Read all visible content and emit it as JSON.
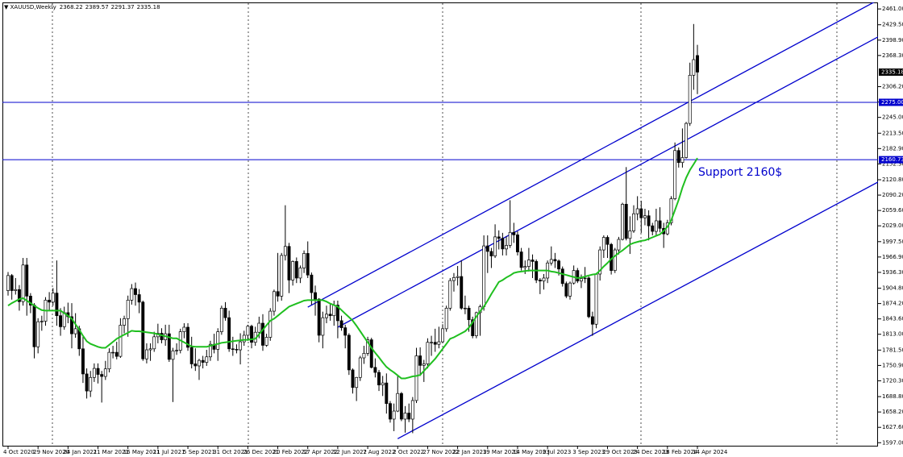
{
  "chart_data": {
    "type": "candlestick",
    "title": "XAUUSD,Weekly",
    "categories": [
      "4 Oct 2020",
      null,
      null,
      null,
      null,
      null,
      null,
      null,
      "29 Nov 2020",
      null,
      null,
      null,
      null,
      null,
      null,
      null,
      "24 Jan 2021",
      null,
      null,
      null,
      null,
      null,
      null,
      null,
      "21 Mar 2021",
      null,
      null,
      null,
      null,
      null,
      null,
      null,
      "16 May 2021",
      null,
      null,
      null,
      null,
      null,
      null,
      null,
      "11 Jul 2021",
      null,
      null,
      null,
      null,
      null,
      null,
      null,
      "5 Sep 2021",
      null,
      null,
      null,
      null,
      null,
      null,
      null,
      "31 Oct 2021",
      null,
      null,
      null,
      null,
      null,
      null,
      null,
      "26 Dec 2021",
      null,
      null,
      null,
      null,
      null,
      null,
      null,
      "20 Feb 2022",
      null,
      null,
      null,
      null,
      null,
      null,
      null,
      "17 Apr 2022",
      null,
      null,
      null,
      null,
      null,
      null,
      null,
      "12 Jun 2022",
      null,
      null,
      null,
      null,
      null,
      null,
      null,
      "7 Aug 2022",
      null,
      null,
      null,
      null,
      null,
      null,
      null,
      "2 Oct 2022",
      null,
      null,
      null,
      null,
      null,
      null,
      null,
      "27 Nov 2022",
      null,
      null,
      null,
      null,
      null,
      null,
      null,
      "22 Jan 2023",
      null,
      null,
      null,
      null,
      null,
      null,
      null,
      "19 Mar 2023",
      null,
      null,
      null,
      null,
      null,
      null,
      null,
      "14 May 2023",
      null,
      null,
      null,
      null,
      null,
      null,
      null,
      "9 Jul 2023",
      null,
      null,
      null,
      null,
      null,
      null,
      null,
      "3 Sep 2023",
      null,
      null,
      null,
      null,
      null,
      null,
      null,
      "29 Oct 2023",
      null,
      null,
      null,
      null,
      null,
      null,
      null,
      "24 Dec 2023",
      null,
      null,
      null,
      null,
      null,
      null,
      null,
      "18 Feb 2024",
      null,
      null,
      null,
      null,
      null,
      null,
      null,
      "14 Apr 2024"
    ],
    "open": [
      1900,
      1930,
      1900,
      1902,
      1878,
      1951,
      1889,
      1871,
      1788,
      1838,
      1839,
      1881,
      1877,
      1895,
      1850,
      1828,
      1856,
      1848,
      1814,
      1824,
      1784,
      1734,
      1700,
      1727,
      1745,
      1733,
      1729,
      1744,
      1777,
      1777,
      1769,
      1831,
      1844,
      1881,
      1904,
      1892,
      1877,
      1764,
      1782,
      1784,
      1808,
      1815,
      1802,
      1814,
      1763,
      1780,
      1781,
      1818,
      1827,
      1787,
      1754,
      1750,
      1761,
      1757,
      1768,
      1793,
      1783,
      1818,
      1865,
      1846,
      1784,
      1783,
      1782,
      1798,
      1811,
      1829,
      1797,
      1817,
      1835,
      1791,
      1807,
      1859,
      1898,
      1889,
      1970,
      1988,
      1921,
      1958,
      1925,
      1945,
      1974,
      1931,
      1896,
      1883,
      1811,
      1846,
      1853,
      1850,
      1871,
      1840,
      1826,
      1811,
      1742,
      1707,
      1727,
      1766,
      1775,
      1802,
      1747,
      1737,
      1712,
      1716,
      1675,
      1644,
      1660,
      1695,
      1644,
      1656,
      1644,
      1681,
      1770,
      1751,
      1754,
      1797,
      1797,
      1793,
      1798,
      1824,
      1865,
      1920,
      1926,
      1928,
      1865,
      1865,
      1842,
      1810,
      1856,
      1868,
      1989,
      1978,
      1969,
      2007,
      2004,
      1983,
      1990,
      2016,
      2011,
      1977,
      1946,
      1948,
      1961,
      1958,
      1921,
      1919,
      1925,
      1955,
      1962,
      1959,
      1943,
      1914,
      1889,
      1915,
      1940,
      1919,
      1924,
      1925,
      1848,
      1833,
      1933,
      1981,
      2006,
      1992,
      1940,
      1981,
      2002,
      2072,
      2004,
      2019,
      2053,
      2063,
      2045,
      2049,
      2029,
      2018,
      2039,
      2024,
      2013,
      2035,
      2083,
      2179,
      2155,
      2165,
      2233,
      2329,
      2368.22
    ],
    "high": [
      1937,
      1933,
      1925,
      1911,
      1965,
      1965,
      1895,
      1875,
      1845,
      1850,
      1887,
      1897,
      1905,
      1960,
      1865,
      1868,
      1876,
      1875,
      1855,
      1830,
      1808,
      1745,
      1740,
      1755,
      1755,
      1740,
      1760,
      1785,
      1790,
      1798,
      1845,
      1850,
      1890,
      1913,
      1916,
      1903,
      1880,
      1795,
      1795,
      1818,
      1834,
      1825,
      1832,
      1832,
      1786,
      1795,
      1824,
      1835,
      1835,
      1808,
      1785,
      1764,
      1770,
      1782,
      1800,
      1814,
      1825,
      1870,
      1877,
      1860,
      1808,
      1793,
      1815,
      1820,
      1832,
      1832,
      1828,
      1848,
      1853,
      1814,
      1865,
      1902,
      1975,
      1975,
      2070,
      1995,
      1960,
      1966,
      1950,
      1980,
      1998,
      1936,
      1910,
      1885,
      1858,
      1870,
      1875,
      1880,
      1880,
      1850,
      1832,
      1815,
      1745,
      1728,
      1770,
      1790,
      1808,
      1806,
      1765,
      1742,
      1730,
      1735,
      1680,
      1675,
      1730,
      1698,
      1670,
      1675,
      1688,
      1786,
      1787,
      1762,
      1805,
      1810,
      1824,
      1828,
      1833,
      1870,
      1925,
      1935,
      1949,
      1960,
      1890,
      1870,
      1848,
      1858,
      1872,
      2010,
      2010,
      1985,
      2032,
      2020,
      2015,
      2008,
      2080,
      2035,
      2018,
      1985,
      1960,
      1985,
      1972,
      1962,
      1925,
      1933,
      1960,
      1988,
      1975,
      1962,
      1948,
      1918,
      1918,
      1950,
      1945,
      1932,
      1947,
      1928,
      1858,
      1935,
      1988,
      2010,
      2010,
      1995,
      1985,
      2007,
      2075,
      2146,
      2048,
      2070,
      2088,
      2079,
      2063,
      2060,
      2035,
      2063,
      2066,
      2035,
      2041,
      2088,
      2195,
      2185,
      2223,
      2236,
      2354,
      2431,
      2389.57
    ],
    "low": [
      1890,
      1882,
      1892,
      1860,
      1870,
      1850,
      1855,
      1765,
      1775,
      1820,
      1830,
      1860,
      1870,
      1830,
      1810,
      1822,
      1835,
      1785,
      1806,
      1770,
      1716,
      1685,
      1688,
      1718,
      1715,
      1677,
      1722,
      1737,
      1765,
      1763,
      1766,
      1815,
      1808,
      1872,
      1870,
      1855,
      1760,
      1755,
      1760,
      1778,
      1795,
      1795,
      1790,
      1758,
      1678,
      1772,
      1775,
      1805,
      1780,
      1745,
      1740,
      1722,
      1745,
      1750,
      1760,
      1775,
      1760,
      1812,
      1840,
      1778,
      1770,
      1775,
      1753,
      1790,
      1800,
      1785,
      1790,
      1805,
      1780,
      1788,
      1800,
      1850,
      1878,
      1880,
      1960,
      1895,
      1910,
      1915,
      1915,
      1935,
      1925,
      1872,
      1850,
      1797,
      1785,
      1835,
      1840,
      1830,
      1805,
      1820,
      1785,
      1732,
      1695,
      1680,
      1720,
      1754,
      1770,
      1745,
      1727,
      1700,
      1690,
      1655,
      1637,
      1620,
      1658,
      1640,
      1617,
      1638,
      1616,
      1676,
      1730,
      1718,
      1745,
      1770,
      1778,
      1785,
      1795,
      1818,
      1860,
      1898,
      1910,
      1862,
      1853,
      1818,
      1805,
      1805,
      1810,
      1860,
      1935,
      1945,
      1965,
      1982,
      1970,
      1970,
      1985,
      1995,
      1970,
      1940,
      1933,
      1938,
      1925,
      1915,
      1893,
      1902,
      1915,
      1950,
      1945,
      1930,
      1908,
      1885,
      1882,
      1912,
      1915,
      1905,
      1915,
      1845,
      1810,
      1825,
      1920,
      1965,
      1965,
      1932,
      1935,
      1972,
      2000,
      2000,
      1973,
      2015,
      2040,
      2015,
      2030,
      2000,
      2010,
      2010,
      2016,
      1985,
      2010,
      2030,
      2080,
      2145,
      2145,
      2163,
      2228,
      2300,
      2291.37
    ],
    "close": [
      1930,
      1900,
      1902,
      1878,
      1951,
      1889,
      1871,
      1788,
      1838,
      1839,
      1881,
      1877,
      1895,
      1850,
      1828,
      1856,
      1848,
      1814,
      1824,
      1784,
      1734,
      1700,
      1727,
      1745,
      1733,
      1729,
      1744,
      1777,
      1777,
      1769,
      1831,
      1844,
      1881,
      1904,
      1892,
      1877,
      1764,
      1782,
      1784,
      1808,
      1815,
      1802,
      1814,
      1763,
      1780,
      1781,
      1818,
      1827,
      1787,
      1754,
      1750,
      1761,
      1757,
      1768,
      1793,
      1783,
      1818,
      1865,
      1846,
      1784,
      1783,
      1782,
      1798,
      1811,
      1829,
      1797,
      1817,
      1835,
      1791,
      1807,
      1859,
      1898,
      1889,
      1970,
      1988,
      1921,
      1958,
      1925,
      1945,
      1974,
      1931,
      1896,
      1883,
      1811,
      1846,
      1853,
      1850,
      1871,
      1840,
      1826,
      1811,
      1742,
      1707,
      1727,
      1766,
      1775,
      1802,
      1747,
      1737,
      1712,
      1716,
      1675,
      1644,
      1660,
      1695,
      1644,
      1656,
      1644,
      1681,
      1770,
      1751,
      1754,
      1797,
      1797,
      1793,
      1798,
      1824,
      1865,
      1920,
      1926,
      1928,
      1865,
      1865,
      1842,
      1810,
      1856,
      1868,
      1989,
      1978,
      1969,
      2007,
      2004,
      1983,
      1990,
      2016,
      2011,
      1977,
      1946,
      1948,
      1961,
      1958,
      1921,
      1919,
      1925,
      1955,
      1962,
      1959,
      1943,
      1914,
      1889,
      1915,
      1940,
      1919,
      1924,
      1925,
      1848,
      1833,
      1933,
      1981,
      2006,
      1992,
      1940,
      1981,
      2002,
      2072,
      2004,
      2019,
      2053,
      2063,
      2045,
      2049,
      2029,
      2018,
      2039,
      2024,
      2013,
      2035,
      2083,
      2179,
      2155,
      2165,
      2233,
      2329,
      2360,
      2335.18
    ],
    "ma": {
      "color": "#1fbf1f",
      "values": [
        1870,
        1875,
        1879,
        1883,
        1885,
        1880,
        1875,
        1870,
        1865,
        1861,
        1860,
        1860,
        1860,
        1860,
        1860,
        1855,
        1850,
        1844,
        1833,
        1822,
        1810,
        1799,
        1794,
        1791,
        1788,
        1786,
        1786,
        1792,
        1798,
        1804,
        1808,
        1812,
        1816,
        1820,
        1819,
        1819,
        1818,
        1817,
        1816,
        1815,
        1813,
        1811,
        1809,
        1807,
        1805,
        1805,
        1801,
        1797,
        1793,
        1789,
        1788,
        1788,
        1788,
        1788,
        1790,
        1792,
        1794,
        1796,
        1797,
        1798,
        1799,
        1800,
        1801,
        1802,
        1802,
        1803,
        1804,
        1813,
        1822,
        1831,
        1840,
        1844,
        1850,
        1856,
        1862,
        1868,
        1871,
        1874,
        1877,
        1880,
        1881,
        1881,
        1881,
        1881,
        1881,
        1878,
        1874,
        1871,
        1868,
        1861,
        1854,
        1847,
        1840,
        1830,
        1819,
        1808,
        1797,
        1786,
        1776,
        1767,
        1757,
        1748,
        1742,
        1737,
        1731,
        1725,
        1725,
        1727,
        1729,
        1730,
        1732,
        1740,
        1748,
        1756,
        1764,
        1774,
        1784,
        1794,
        1804,
        1807,
        1811,
        1815,
        1819,
        1826,
        1837,
        1848,
        1859,
        1868,
        1880,
        1893,
        1905,
        1917,
        1921,
        1926,
        1930,
        1935,
        1937,
        1938,
        1939,
        1940,
        1940,
        1940,
        1940,
        1940,
        1940,
        1938,
        1937,
        1935,
        1933,
        1931,
        1929,
        1927,
        1925,
        1926,
        1928,
        1930,
        1932,
        1933,
        1940,
        1948,
        1955,
        1963,
        1969,
        1975,
        1980,
        1986,
        1992,
        1995,
        1997,
        1999,
        2000,
        2003,
        2006,
        2009,
        2012,
        2019,
        2027,
        2040,
        2060,
        2081,
        2105,
        2125,
        2140,
        2152,
        2164
      ]
    },
    "levels": [
      {
        "value": 2275,
        "label": "2275.00",
        "color": "#0000cd"
      },
      {
        "value": 2160.73,
        "label": "2160.73",
        "color": "#0000cd"
      }
    ],
    "trendlines": [
      {
        "x": [
          "17 Apr 2022",
          "14 Apr 2024"
        ],
        "values": [
          1867,
          2285
        ],
        "color": "#0000cd"
      },
      {
        "x": [
          "12 Jun 2022",
          "14 Apr 2024"
        ],
        "values": [
          1827,
          2212
        ],
        "color": "#0000cd"
      },
      {
        "x": [
          "2 Oct 2022",
          "14 Apr 2024"
        ],
        "values": [
          1605,
          1924
        ],
        "color": "#0000cd"
      }
    ],
    "annotation": "Support 2160$",
    "ylim": [
      1591,
      2474
    ],
    "yticks": [
      {
        "value": 2461,
        "label": "2461.00"
      },
      {
        "value": 2429.5,
        "label": "2429.50"
      },
      {
        "value": 2398.9,
        "label": "2398.90"
      },
      {
        "value": 2368.3,
        "label": "2368.30"
      },
      {
        "value": 2306.2,
        "label": "2306.20"
      },
      {
        "value": 2275.6,
        "label": "2275.60"
      },
      {
        "value": 2245,
        "label": "2245.00"
      },
      {
        "value": 2213.5,
        "label": "2213.50"
      },
      {
        "value": 2182.9,
        "label": "2182.90"
      },
      {
        "value": 2152.3,
        "label": "2152.30"
      },
      {
        "value": 2120.8,
        "label": "2120.80"
      },
      {
        "value": 2090.2,
        "label": "2090.20"
      },
      {
        "value": 2059.6,
        "label": "2059.60"
      },
      {
        "value": 2029,
        "label": "2029.00"
      },
      {
        "value": 1997.5,
        "label": "1997.50"
      },
      {
        "value": 1966.9,
        "label": "1966.90"
      },
      {
        "value": 1936.3,
        "label": "1936.30"
      },
      {
        "value": 1904.8,
        "label": "1904.80"
      },
      {
        "value": 1874.2,
        "label": "1874.20"
      },
      {
        "value": 1843.6,
        "label": "1843.60"
      },
      {
        "value": 1813,
        "label": "1813.00"
      },
      {
        "value": 1781.5,
        "label": "1781.50"
      },
      {
        "value": 1750.9,
        "label": "1750.90"
      },
      {
        "value": 1720.3,
        "label": "1720.30"
      },
      {
        "value": 1688.8,
        "label": "1688.80"
      },
      {
        "value": 1658.2,
        "label": "1658.20"
      },
      {
        "value": 1627.6,
        "label": "1627.60"
      },
      {
        "value": 1597,
        "label": "1597.00"
      }
    ],
    "bull_color": "#ffffff",
    "bear_color": "#000000"
  }
}
